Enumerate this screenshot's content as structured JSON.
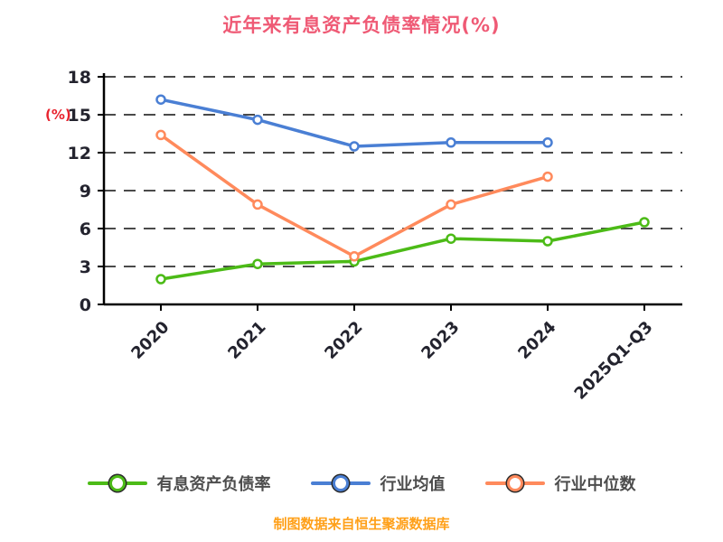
{
  "chart_data": {
    "type": "line",
    "title": "近年来有息资产负债率情况(%)",
    "ylabel": "(%)",
    "xlabel": "",
    "categories": [
      "2020",
      "2021",
      "2022",
      "2023",
      "2024",
      "2025Q1-Q3"
    ],
    "ylim": [
      0,
      18
    ],
    "yticks": [
      0,
      3,
      6,
      9,
      12,
      15,
      18
    ],
    "grid": "dashed-horizontal",
    "legend_position": "bottom",
    "series": [
      {
        "name": "有息资产负债率",
        "color": "#4cbb17",
        "values": [
          2.0,
          3.2,
          3.4,
          5.2,
          5.0,
          6.5
        ]
      },
      {
        "name": "行业均值",
        "color": "#4a7fd4",
        "values": [
          16.2,
          14.6,
          12.5,
          12.8,
          12.8,
          null
        ]
      },
      {
        "name": "行业中位数",
        "color": "#ff8a5c",
        "values": [
          13.4,
          7.9,
          3.8,
          7.9,
          10.1,
          null
        ]
      }
    ]
  },
  "footer": {
    "source": "制图数据来自恒生聚源数据库"
  },
  "colors": {
    "title": "#ef5a75",
    "ylabel": "#e8232e",
    "tick_text": "#23232e",
    "axis": "#000000",
    "grid": "#4a4a4a",
    "legend_text": "#4d4d4d",
    "footer": "#ffa019",
    "background": "#ffffff"
  }
}
